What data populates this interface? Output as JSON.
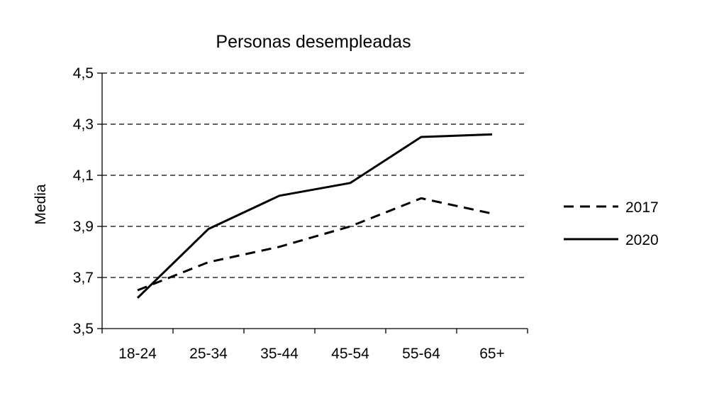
{
  "chart_data": {
    "type": "line",
    "title": "Personas desempleadas",
    "xlabel": "",
    "ylabel": "Media",
    "categories": [
      "18-24",
      "25-34",
      "35-44",
      "45-54",
      "55-64",
      "65+"
    ],
    "ylim": [
      3.5,
      4.5
    ],
    "yticks": [
      3.5,
      3.7,
      3.9,
      4.1,
      4.3,
      4.5
    ],
    "ytick_labels": [
      "3,5",
      "3,7",
      "3,9",
      "4,1",
      "4,3",
      "4,5"
    ],
    "grid": true,
    "legend": "right",
    "series": [
      {
        "name": "2017",
        "style": "dashed",
        "color": "#000000",
        "values": [
          3.65,
          3.76,
          3.82,
          3.9,
          4.01,
          3.95
        ]
      },
      {
        "name": "2020",
        "style": "solid",
        "color": "#000000",
        "values": [
          3.62,
          3.89,
          4.02,
          4.07,
          4.25,
          4.26
        ]
      }
    ]
  }
}
